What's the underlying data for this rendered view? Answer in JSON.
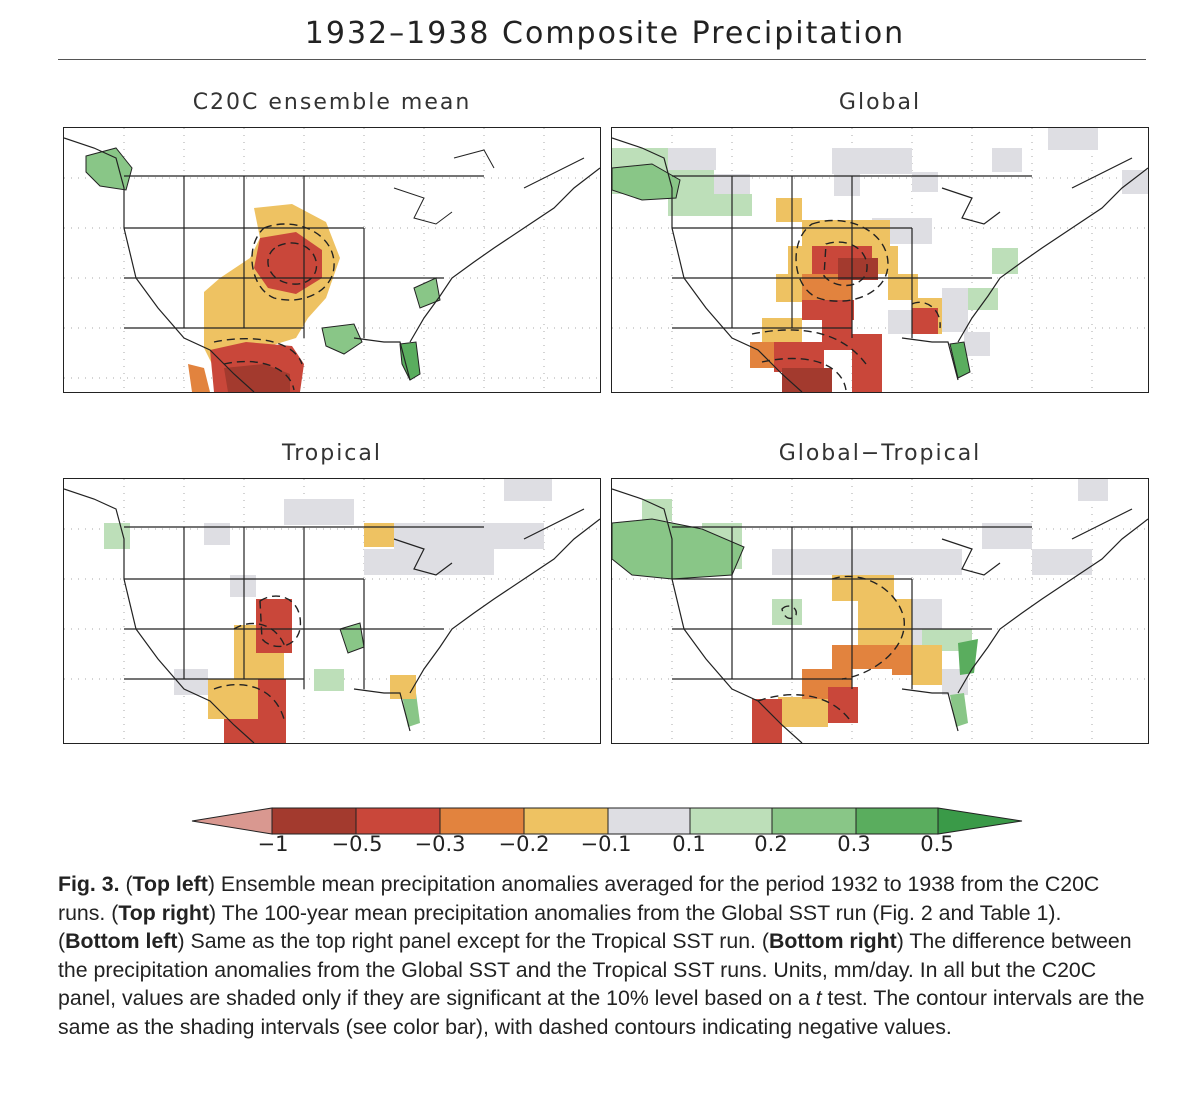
{
  "title": "1932–1938 Composite Precipitation",
  "panels": [
    {
      "label": "C20C ensemble mean"
    },
    {
      "label": "Global"
    },
    {
      "label": "Tropical"
    },
    {
      "label": "Global−Tropical"
    }
  ],
  "colorbar": {
    "ticks": [
      "−1",
      "−0.5",
      "−0.3",
      "−0.2",
      "−0.1",
      "0.1",
      "0.2",
      "0.3",
      "0.5"
    ],
    "colors": [
      "#d99890",
      "#a33a2e",
      "#c9473a",
      "#e2833e",
      "#eec262",
      "#dedee3",
      "#bddfb9",
      "#89c687",
      "#5aad5e",
      "#3a9a48"
    ]
  },
  "caption": {
    "fig": "Fig. 3.",
    "tl_head": "Top left",
    "tl_text": " Ensemble mean precipitation anomalies averaged for the period 1932 to 1938 from the C20C runs. ",
    "tr_head": "Top right",
    "tr_text": " The 100-year mean precipitation anomalies from the Global SST run (Fig. 2 and Table 1). ",
    "bl_head": "Bottom left",
    "bl_text": " Same as the top right panel except for the Tropical SST run. ",
    "br_head": "Bottom right",
    "br_text": " The difference between the precipitation anomalies from the Global SST and the Tropical SST runs. Units, mm/day. In all but the C20C panel, values are shaded only if they are significant at the 10% level based on a ",
    "t_symbol": "t",
    "tail_text": " test. The contour intervals are the same as the shading intervals (see color bar), with dashed contours indicating negative values."
  }
}
